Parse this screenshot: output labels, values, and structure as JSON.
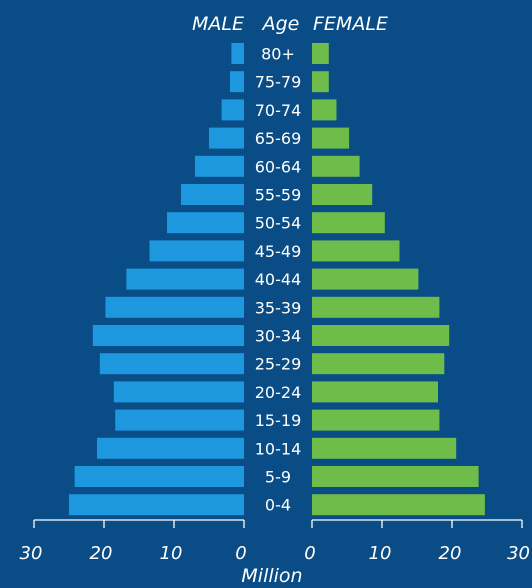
{
  "colors": {
    "background": "#0a4c86",
    "male": "#1d97de",
    "female": "#6ebc4a",
    "text": "#ffffff"
  },
  "chart_data": {
    "type": "bar",
    "orientation": "horizontal-population-pyramid",
    "header": {
      "left": "MALE",
      "center": "Age",
      "right": "FEMALE"
    },
    "categories": [
      "80+",
      "75-79",
      "70-74",
      "65-69",
      "60-64",
      "55-59",
      "50-54",
      "45-49",
      "40-44",
      "35-39",
      "30-34",
      "25-29",
      "20-24",
      "15-19",
      "10-14",
      "5-9",
      "0-4"
    ],
    "series": [
      {
        "name": "MALE",
        "values": [
          1.8,
          2.0,
          3.2,
          5.0,
          7.0,
          9.0,
          11.0,
          13.5,
          16.8,
          19.8,
          21.6,
          20.6,
          18.6,
          18.4,
          21.0,
          24.2,
          25.0
        ]
      },
      {
        "name": "FEMALE",
        "values": [
          2.4,
          2.4,
          3.5,
          5.3,
          6.8,
          8.6,
          10.4,
          12.5,
          15.2,
          18.2,
          19.6,
          18.9,
          18.0,
          18.2,
          20.6,
          23.8,
          24.7
        ]
      }
    ],
    "xlabel": "Million",
    "xticks": [
      30,
      20,
      10,
      0
    ],
    "xlim": [
      0,
      30
    ],
    "grid": false
  }
}
